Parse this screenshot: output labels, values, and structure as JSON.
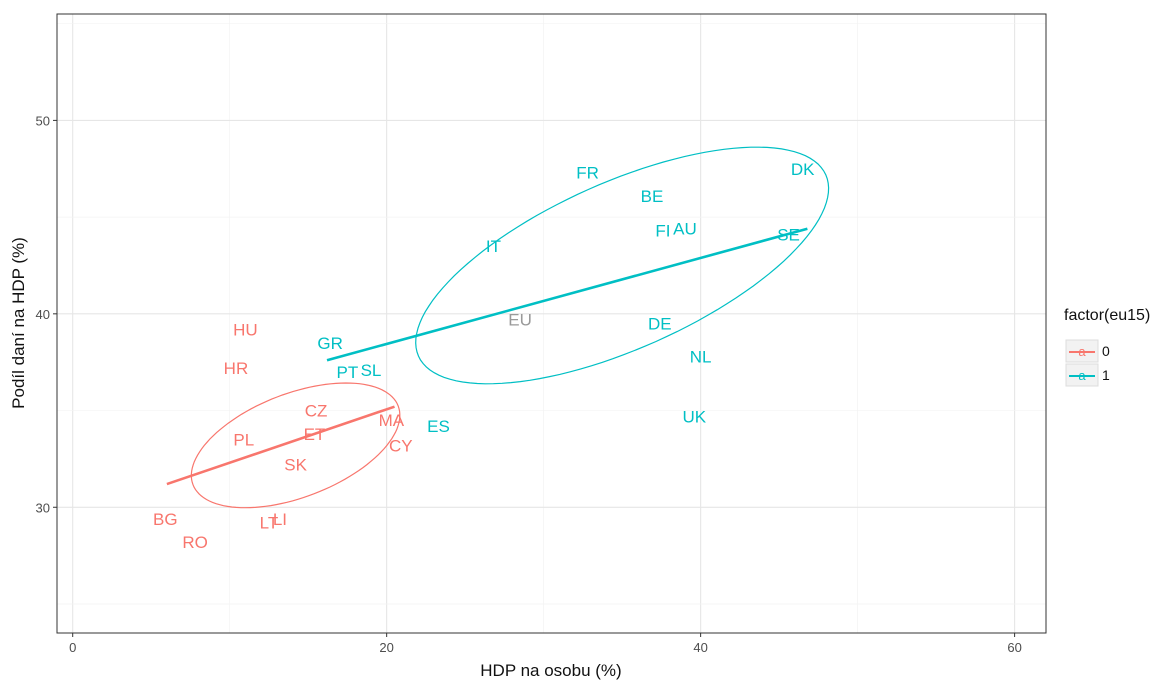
{
  "chart_data": {
    "type": "scatter",
    "xlabel": "HDP na osobu (%)",
    "ylabel": "Podíl daní na HDP (%)",
    "xlim": [
      -1,
      62
    ],
    "ylim": [
      23.5,
      55.5
    ],
    "xticks": [
      0,
      20,
      40,
      60
    ],
    "yticks": [
      30,
      40,
      50
    ],
    "grid": true,
    "legend": {
      "title": "factor(eu15)",
      "position": "right",
      "key_glyph": "a",
      "entries": [
        {
          "label": "0",
          "color": "#F8766D"
        },
        {
          "label": "1",
          "color": "#00BFC4"
        }
      ]
    },
    "series": [
      {
        "name": "0",
        "color": "#F8766D",
        "points": [
          {
            "label": "HU",
            "x": 11.0,
            "y": 39.2
          },
          {
            "label": "HR",
            "x": 10.4,
            "y": 37.2
          },
          {
            "label": "CZ",
            "x": 15.5,
            "y": 35.0
          },
          {
            "label": "MA",
            "x": 20.3,
            "y": 34.5
          },
          {
            "label": "ET",
            "x": 15.4,
            "y": 33.8
          },
          {
            "label": "PL",
            "x": 10.9,
            "y": 33.5
          },
          {
            "label": "CY",
            "x": 20.9,
            "y": 33.2
          },
          {
            "label": "SK",
            "x": 14.2,
            "y": 32.2
          },
          {
            "label": "BG",
            "x": 5.9,
            "y": 29.4
          },
          {
            "label": "LT",
            "x": 12.5,
            "y": 29.2
          },
          {
            "label": "LI",
            "x": 13.2,
            "y": 29.4
          },
          {
            "label": "RO",
            "x": 7.8,
            "y": 28.2
          }
        ],
        "fit_line": {
          "x": [
            6.0,
            20.5
          ],
          "y": [
            31.2,
            35.2
          ]
        },
        "ellipse": {
          "cx": 14.2,
          "cy": 33.2,
          "rx": 14.0,
          "ry": 6.6,
          "rotation_deg": 21
        }
      },
      {
        "name": "1",
        "color": "#00BFC4",
        "points": [
          {
            "label": "DK",
            "x": 46.5,
            "y": 47.5
          },
          {
            "label": "FR",
            "x": 32.8,
            "y": 47.3
          },
          {
            "label": "BE",
            "x": 36.9,
            "y": 46.1
          },
          {
            "label": "FI",
            "x": 37.6,
            "y": 44.3
          },
          {
            "label": "AU",
            "x": 39.0,
            "y": 44.4
          },
          {
            "label": "SE",
            "x": 45.6,
            "y": 44.1
          },
          {
            "label": "IT",
            "x": 26.8,
            "y": 43.5
          },
          {
            "label": "DE",
            "x": 37.4,
            "y": 39.5
          },
          {
            "label": "GR",
            "x": 16.4,
            "y": 38.5
          },
          {
            "label": "NL",
            "x": 40.0,
            "y": 37.8
          },
          {
            "label": "PT",
            "x": 17.5,
            "y": 37.0
          },
          {
            "label": "SL",
            "x": 19.0,
            "y": 37.1
          },
          {
            "label": "ES",
            "x": 23.3,
            "y": 34.2
          },
          {
            "label": "UK",
            "x": 39.6,
            "y": 34.7
          }
        ],
        "fit_line": {
          "x": [
            16.2,
            46.8
          ],
          "y": [
            37.6,
            44.4
          ]
        },
        "ellipse": {
          "cx": 35.0,
          "cy": 42.5,
          "rx": 28.4,
          "ry": 10.6,
          "rotation_deg": 24
        }
      }
    ],
    "extra_labels": [
      {
        "label": "EU",
        "x": 28.5,
        "y": 39.7,
        "color": "#999999"
      }
    ]
  }
}
